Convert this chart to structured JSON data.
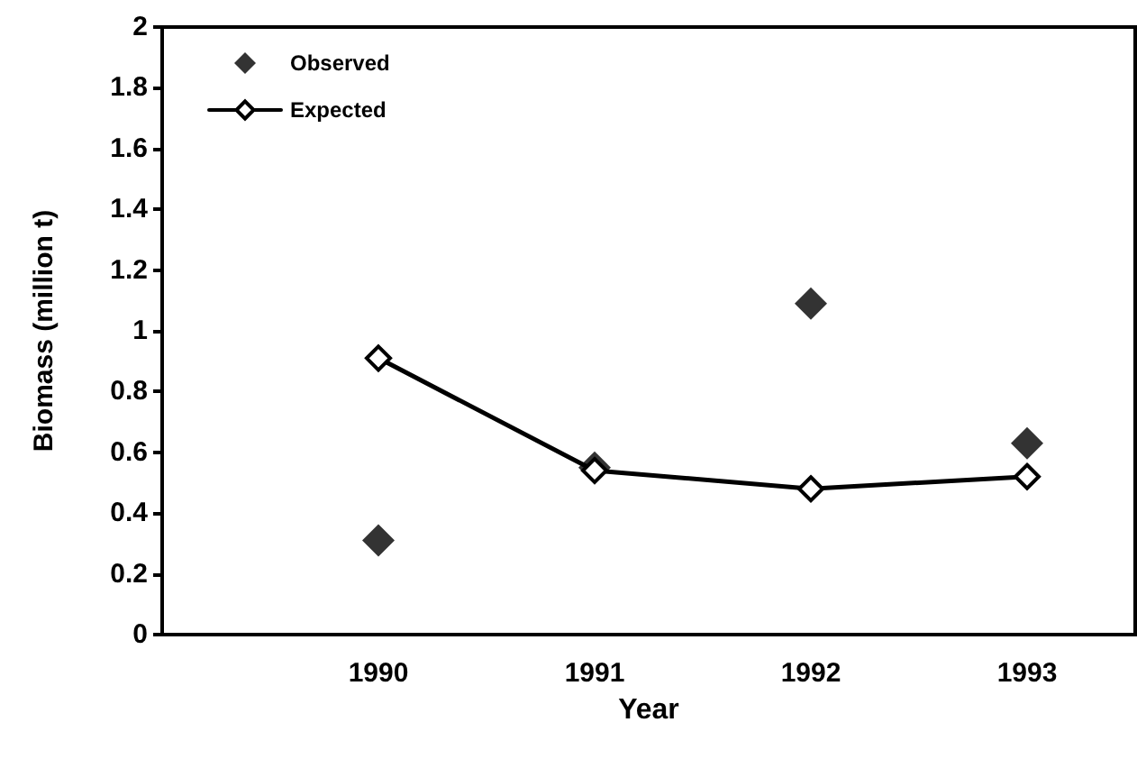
{
  "chart_data": {
    "type": "line",
    "xlabel": "Year",
    "ylabel": "Biomass (million t)",
    "x": [
      1990,
      1991,
      1992,
      1993
    ],
    "series": [
      {
        "name": "Observed",
        "type": "scatter",
        "color": "#000000",
        "values": [
          0.31,
          0.55,
          1.09,
          0.63
        ]
      },
      {
        "name": "Expected",
        "type": "line",
        "color": "#000000",
        "values": [
          0.91,
          0.54,
          0.48,
          0.52
        ]
      }
    ],
    "xlim": [
      1989,
      1993.5
    ],
    "xticks": [
      1990,
      1991,
      1992,
      1993
    ],
    "ylim": [
      0,
      2
    ],
    "yticks": [
      0,
      0.2,
      0.4,
      0.6,
      0.8,
      1,
      1.2,
      1.4,
      1.6,
      1.8,
      2
    ],
    "grid": false,
    "legend": "top left",
    "marker": "diamond",
    "line_style": "solid"
  }
}
